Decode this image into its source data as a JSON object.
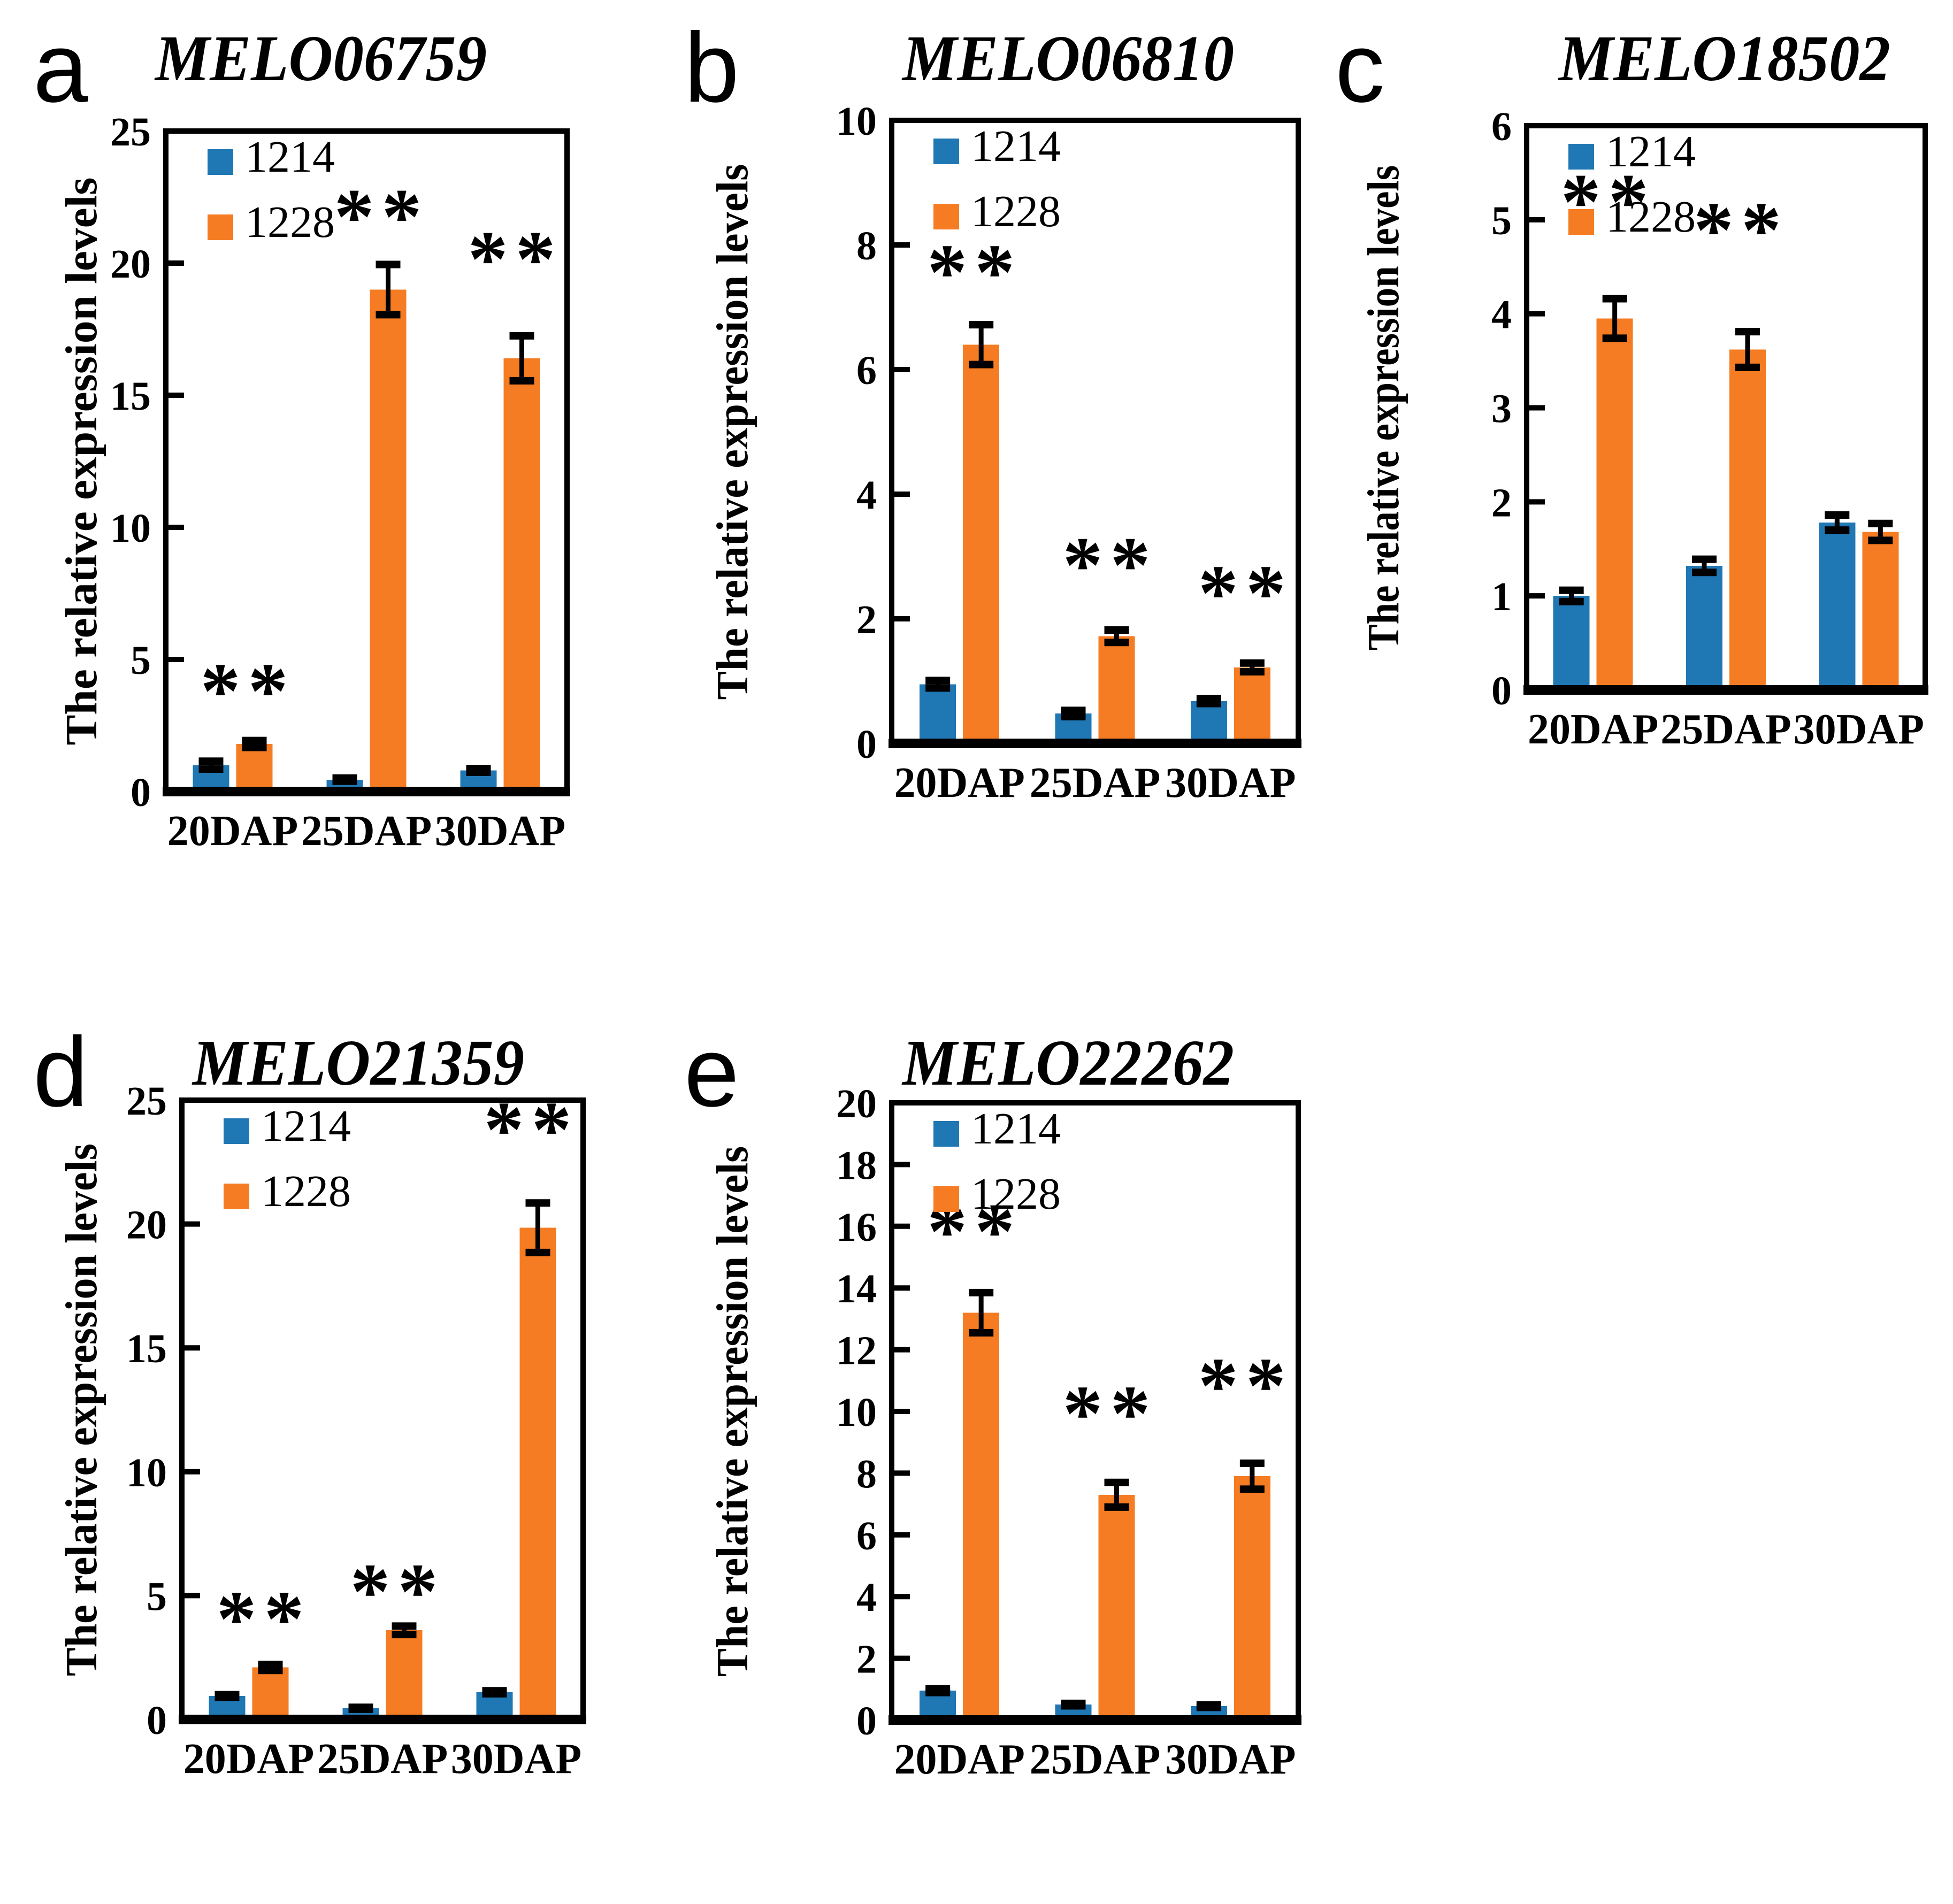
{
  "figure": {
    "ylabel": "The relative expression levels",
    "categories": [
      "20DAP",
      "25DAP",
      "30DAP"
    ],
    "legend_labels": [
      "1214",
      "1228"
    ],
    "colors": {
      "series_1214": "#1F77B4",
      "series_1228": "#F57C23",
      "significance": "#808080",
      "axis": "#000000"
    },
    "significance_symbol": "**"
  },
  "chart_data": [
    {
      "type": "bar",
      "panel": "a",
      "title": "MELO06759",
      "xlabel": "",
      "ylabel": "The relative expression levels",
      "categories": [
        "20DAP",
        "25DAP",
        "30DAP"
      ],
      "ylim": [
        0,
        25
      ],
      "yticks": [
        0,
        5,
        10,
        15,
        20,
        25
      ],
      "grid": false,
      "legend_position": "top-left-inside",
      "series": [
        {
          "name": "1214",
          "values": [
            1.0,
            0.45,
            0.8
          ],
          "errors": [
            0.15,
            0.06,
            0.07
          ]
        },
        {
          "name": "1228",
          "values": [
            1.8,
            19.0,
            16.4
          ],
          "errors": [
            0.13,
            0.95,
            0.85
          ]
        }
      ],
      "significance": [
        {
          "group": 0,
          "label": "**",
          "y": 2.95
        },
        {
          "group": 1,
          "label": "**",
          "y": 20.9
        },
        {
          "group": 2,
          "label": "**",
          "y": 19.3
        }
      ]
    },
    {
      "type": "bar",
      "panel": "b",
      "title": "MELO06810",
      "xlabel": "",
      "ylabel": "The relative expression levels",
      "categories": [
        "20DAP",
        "25DAP",
        "30DAP"
      ],
      "ylim": [
        0,
        10
      ],
      "yticks": [
        0,
        2,
        4,
        6,
        8,
        10
      ],
      "grid": false,
      "legend_position": "top-left-inside",
      "series": [
        {
          "name": "1214",
          "values": [
            0.95,
            0.48,
            0.68
          ],
          "errors": [
            0.06,
            0.05,
            0.04
          ]
        },
        {
          "name": "1228",
          "values": [
            6.4,
            1.72,
            1.22
          ],
          "errors": [
            0.32,
            0.1,
            0.07
          ]
        }
      ],
      "significance": [
        {
          "group": 0,
          "label": "**",
          "y": 7.2
        },
        {
          "group": 1,
          "label": "**",
          "y": 2.5
        },
        {
          "group": 2,
          "label": "**",
          "y": 2.05
        }
      ]
    },
    {
      "type": "bar",
      "panel": "c",
      "title": "MELO18502",
      "xlabel": "",
      "ylabel": "The relative expression levels",
      "categories": [
        "20DAP",
        "25DAP",
        "30DAP"
      ],
      "ylim": [
        0,
        6
      ],
      "yticks": [
        0,
        1,
        2,
        3,
        4,
        5,
        6
      ],
      "grid": false,
      "legend_position": "top-left-inside",
      "series": [
        {
          "name": "1214",
          "values": [
            1.0,
            1.32,
            1.78
          ],
          "errors": [
            0.06,
            0.07,
            0.08
          ]
        },
        {
          "name": "1228",
          "values": [
            3.95,
            3.62,
            1.68
          ],
          "errors": [
            0.21,
            0.19,
            0.09
          ]
        }
      ],
      "significance": [
        {
          "group": 0,
          "label": "**",
          "y": 4.95
        },
        {
          "group": 1,
          "label": "**",
          "y": 4.65
        }
      ]
    },
    {
      "type": "bar",
      "panel": "d",
      "title": "MELO21359",
      "xlabel": "",
      "ylabel": "The relative expression levels",
      "categories": [
        "20DAP",
        "25DAP",
        "30DAP"
      ],
      "ylim": [
        0,
        25
      ],
      "yticks": [
        0,
        5,
        10,
        15,
        20,
        25
      ],
      "grid": false,
      "legend_position": "top-left-inside",
      "series": [
        {
          "name": "1214",
          "values": [
            0.95,
            0.45,
            1.1
          ],
          "errors": [
            0.05,
            0.04,
            0.06
          ]
        },
        {
          "name": "1228",
          "values": [
            2.1,
            3.6,
            19.85
          ],
          "errors": [
            0.12,
            0.17,
            1.0
          ]
        }
      ],
      "significance": [
        {
          "group": 0,
          "label": "**",
          "y": 3.15
        },
        {
          "group": 1,
          "label": "**",
          "y": 4.25
        },
        {
          "group": 2,
          "label": "**",
          "y": 22.9
        }
      ]
    },
    {
      "type": "bar",
      "panel": "e",
      "title": "MELO22262",
      "xlabel": "",
      "ylabel": "The relative expression levels",
      "categories": [
        "20DAP",
        "25DAP",
        "30DAP"
      ],
      "ylim": [
        0,
        20
      ],
      "yticks": [
        0,
        2,
        4,
        6,
        8,
        10,
        12,
        14,
        16,
        18,
        20
      ],
      "grid": false,
      "legend_position": "top-left-inside",
      "series": [
        {
          "name": "1214",
          "values": [
            0.95,
            0.5,
            0.45
          ],
          "errors": [
            0.06,
            0.04,
            0.04
          ]
        },
        {
          "name": "1228",
          "values": [
            13.2,
            7.3,
            7.9
          ],
          "errors": [
            0.65,
            0.4,
            0.42
          ]
        }
      ],
      "significance": [
        {
          "group": 0,
          "label": "**",
          "y": 15.1
        },
        {
          "group": 1,
          "label": "**",
          "y": 9.2
        },
        {
          "group": 2,
          "label": "**",
          "y": 10.1
        }
      ]
    }
  ]
}
